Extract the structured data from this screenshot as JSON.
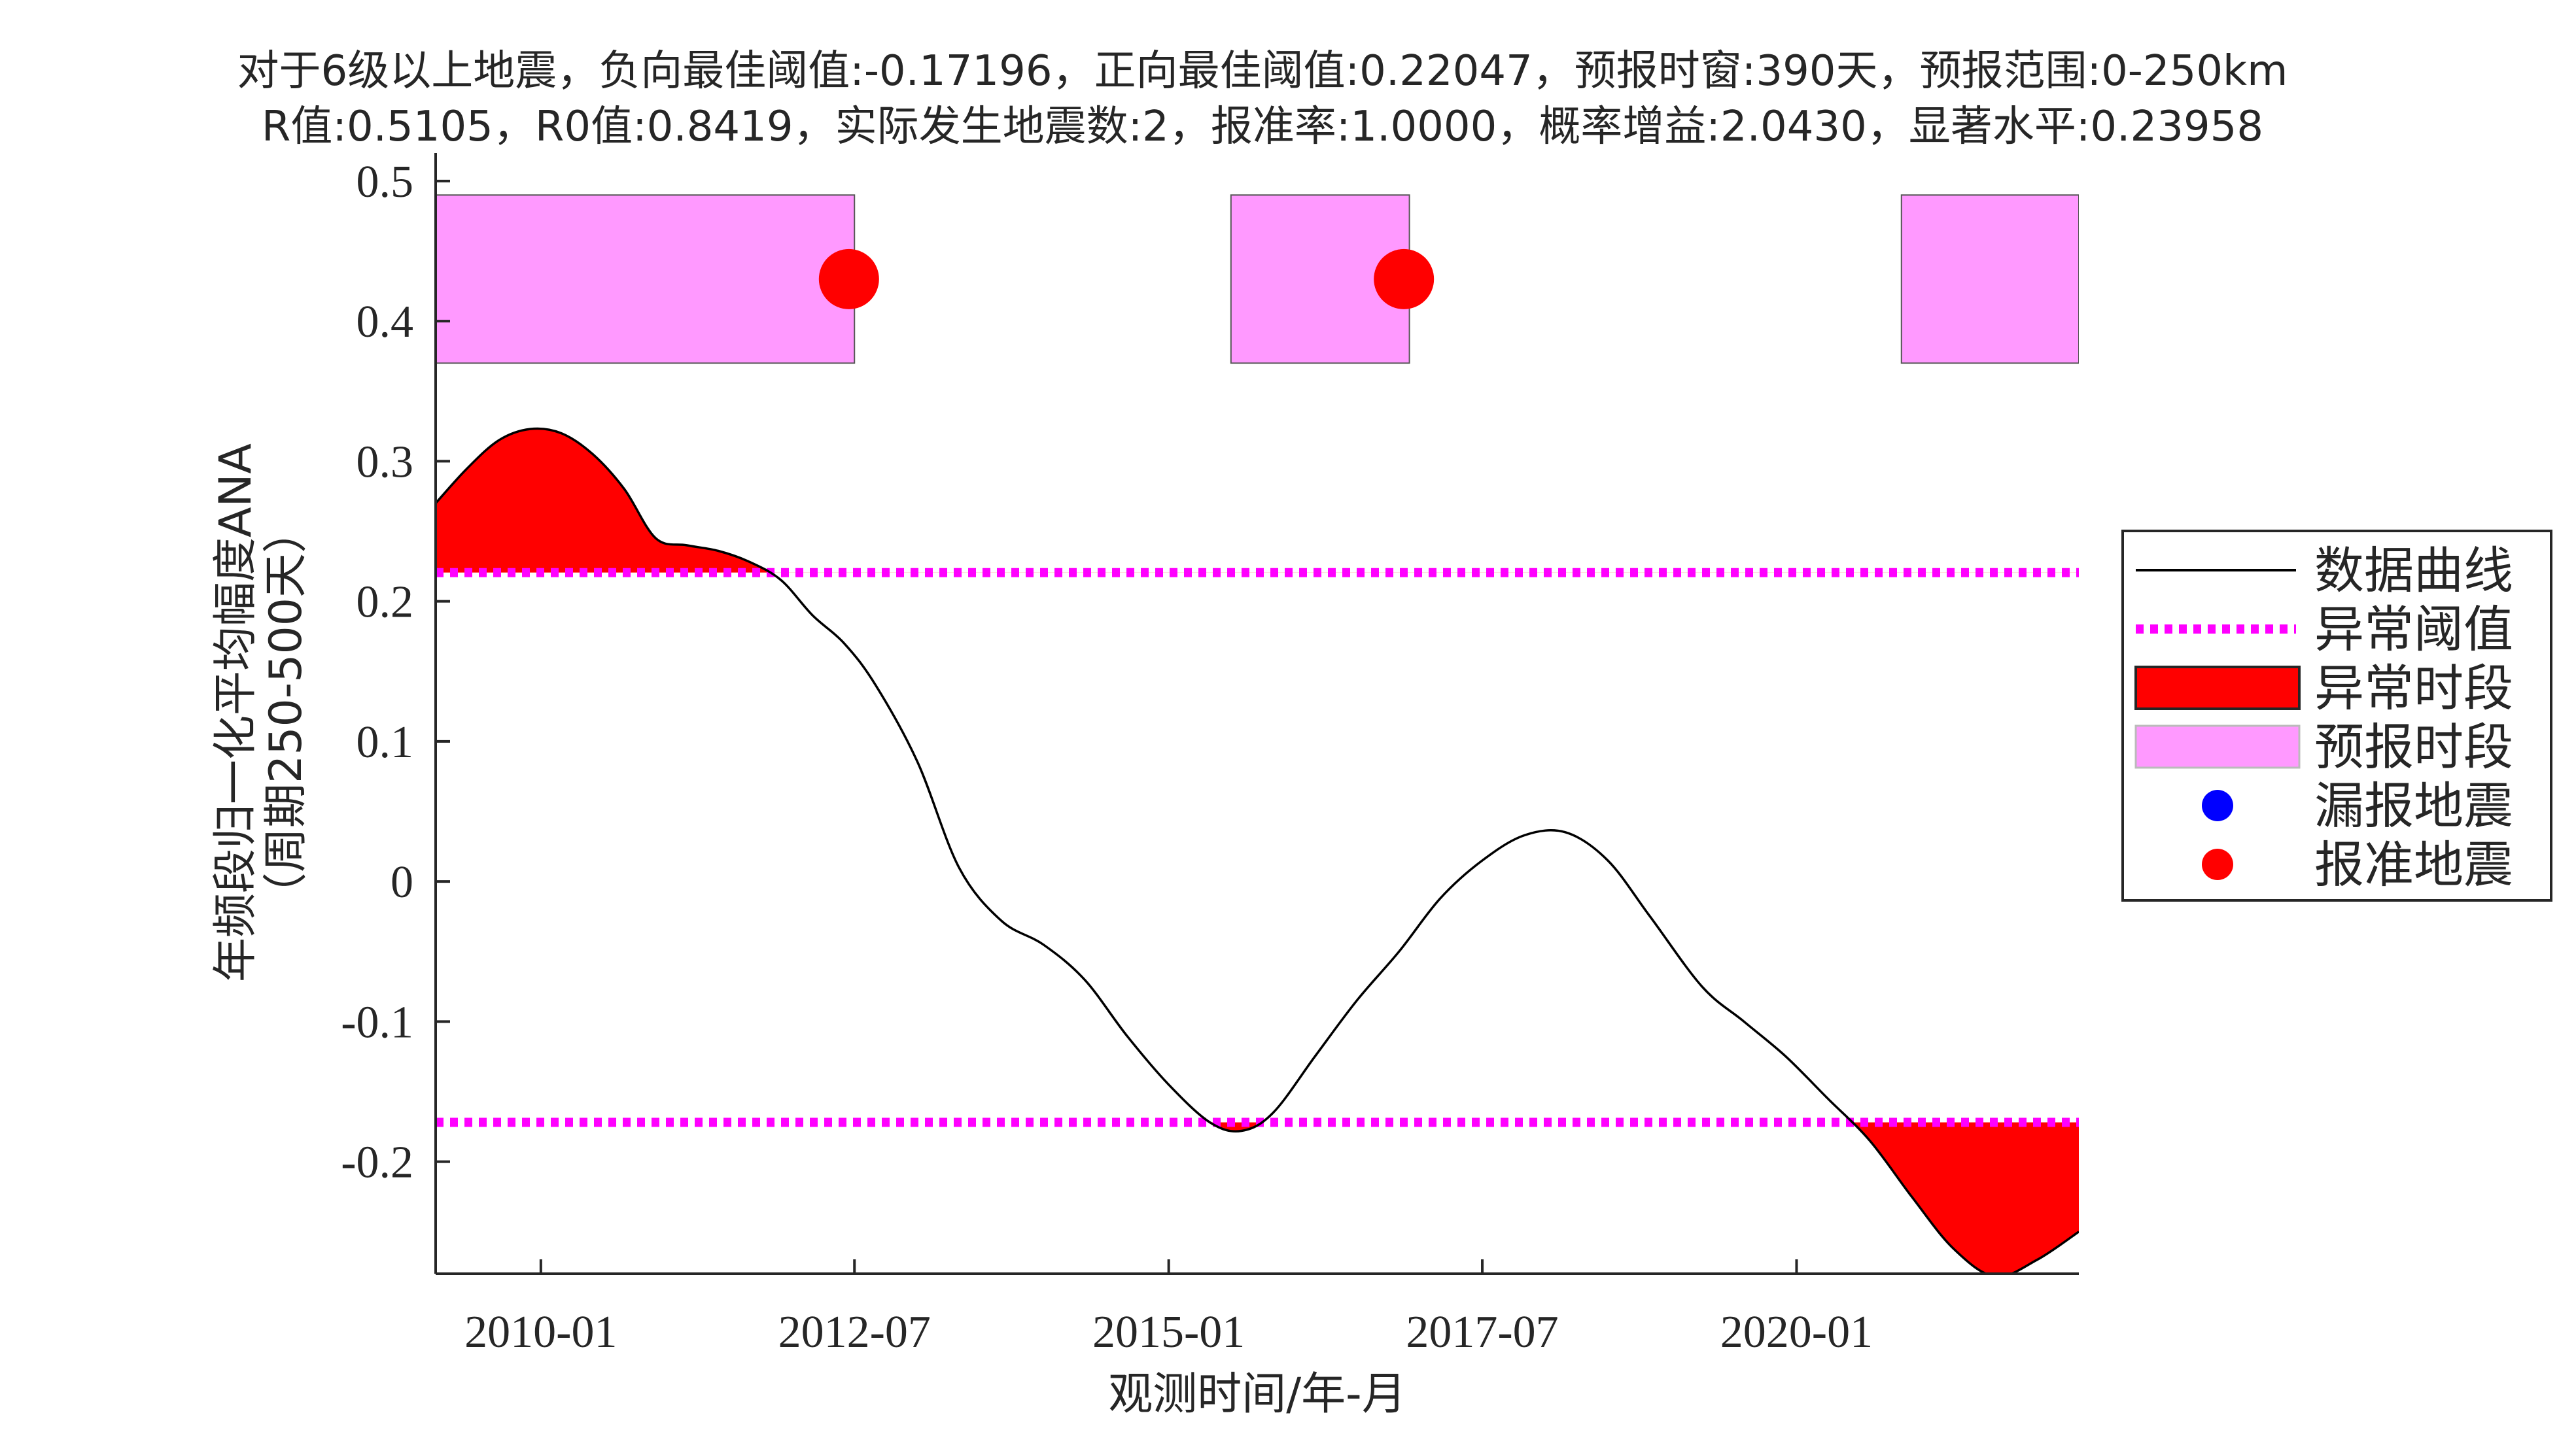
{
  "chart_data": {
    "type": "line",
    "title_lines": [
      "对于6级以上地震，负向最佳阈值:-0.17196，正向最佳阈值:0.22047，预报时窗:390天，预报范围:0-250km",
      "R值:0.5105，R0值:0.8419，实际发生地震数:2，报准率:1.0000，概率增益:2.0430，显著水平:0.23958"
    ],
    "xlabel": "观测时间/年-月",
    "ylabel_lines": [
      "年频段归一化平均幅度ANA",
      "（周期250-500天）"
    ],
    "xlim": [
      "2009-03-01",
      "2022-04-01"
    ],
    "ylim": [
      -0.28,
      0.52
    ],
    "x_ticks": [
      {
        "date": "2010-01-01",
        "label": "2010-01"
      },
      {
        "date": "2012-07-01",
        "label": "2012-07"
      },
      {
        "date": "2015-01-01",
        "label": "2015-01"
      },
      {
        "date": "2017-07-01",
        "label": "2017-07"
      },
      {
        "date": "2020-01-01",
        "label": "2020-01"
      }
    ],
    "y_ticks": [
      {
        "value": 0.5,
        "label": "0.5"
      },
      {
        "value": 0.4,
        "label": "0.4"
      },
      {
        "value": 0.3,
        "label": "0.3"
      },
      {
        "value": 0.2,
        "label": "0.2"
      },
      {
        "value": 0.1,
        "label": "0.1"
      },
      {
        "value": 0,
        "label": "0"
      },
      {
        "value": -0.1,
        "label": "-0.1"
      },
      {
        "value": -0.2,
        "label": "-0.2"
      }
    ],
    "thresholds": {
      "positive": 0.22047,
      "negative": -0.17196
    },
    "curve": [
      {
        "x": "2009-03-01",
        "y": 0.27
      },
      {
        "x": "2009-06-01",
        "y": 0.295
      },
      {
        "x": "2009-09-01",
        "y": 0.315
      },
      {
        "x": "2009-12-01",
        "y": 0.323
      },
      {
        "x": "2010-03-01",
        "y": 0.32
      },
      {
        "x": "2010-06-01",
        "y": 0.305
      },
      {
        "x": "2010-09-01",
        "y": 0.28
      },
      {
        "x": "2010-12-01",
        "y": 0.245
      },
      {
        "x": "2011-03-01",
        "y": 0.24
      },
      {
        "x": "2011-06-01",
        "y": 0.236
      },
      {
        "x": "2011-09-01",
        "y": 0.228
      },
      {
        "x": "2011-12-01",
        "y": 0.215
      },
      {
        "x": "2012-03-01",
        "y": 0.19
      },
      {
        "x": "2012-06-01",
        "y": 0.17
      },
      {
        "x": "2012-09-01",
        "y": 0.14
      },
      {
        "x": "2013-01-01",
        "y": 0.085
      },
      {
        "x": "2013-05-01",
        "y": 0.01
      },
      {
        "x": "2013-09-01",
        "y": -0.028
      },
      {
        "x": "2014-01-01",
        "y": -0.045
      },
      {
        "x": "2014-05-01",
        "y": -0.07
      },
      {
        "x": "2014-09-01",
        "y": -0.11
      },
      {
        "x": "2015-01-01",
        "y": -0.145
      },
      {
        "x": "2015-05-01",
        "y": -0.172
      },
      {
        "x": "2015-08-01",
        "y": -0.178
      },
      {
        "x": "2015-11-01",
        "y": -0.165
      },
      {
        "x": "2016-03-01",
        "y": -0.125
      },
      {
        "x": "2016-07-01",
        "y": -0.085
      },
      {
        "x": "2016-11-01",
        "y": -0.05
      },
      {
        "x": "2017-03-01",
        "y": -0.012
      },
      {
        "x": "2017-07-01",
        "y": 0.015
      },
      {
        "x": "2017-11-01",
        "y": 0.033
      },
      {
        "x": "2018-03-01",
        "y": 0.035
      },
      {
        "x": "2018-07-01",
        "y": 0.015
      },
      {
        "x": "2018-11-01",
        "y": -0.025
      },
      {
        "x": "2019-04-01",
        "y": -0.075
      },
      {
        "x": "2019-08-01",
        "y": -0.1
      },
      {
        "x": "2019-12-01",
        "y": -0.125
      },
      {
        "x": "2020-04-01",
        "y": -0.155
      },
      {
        "x": "2020-08-01",
        "y": -0.185
      },
      {
        "x": "2020-12-01",
        "y": -0.225
      },
      {
        "x": "2021-04-01",
        "y": -0.262
      },
      {
        "x": "2021-08-01",
        "y": -0.282
      },
      {
        "x": "2021-12-01",
        "y": -0.27
      },
      {
        "x": "2022-04-01",
        "y": -0.25
      }
    ],
    "forecast_periods": [
      {
        "start": "2009-03-01",
        "end": "2012-07-01",
        "y_range": [
          0.37,
          0.49
        ]
      },
      {
        "start": "2015-07-01",
        "end": "2016-12-01",
        "y_range": [
          0.37,
          0.49
        ]
      },
      {
        "start": "2020-11-01",
        "end": "2022-04-01",
        "y_range": [
          0.37,
          0.49
        ]
      }
    ],
    "earthquakes": [
      {
        "x": "2012-06-15",
        "y": 0.43,
        "status": "报准"
      },
      {
        "x": "2016-11-15",
        "y": 0.43,
        "status": "报准"
      }
    ],
    "colors": {
      "curve": "#000000",
      "threshold": "#ff00ff",
      "anomaly": "#ff0000",
      "forecast": "#ff99ff",
      "missed": "#0000ff",
      "hit": "#ff0000"
    },
    "legend": {
      "position": "right",
      "items": [
        {
          "label": "数据曲线",
          "kind": "line"
        },
        {
          "label": "异常阈值",
          "kind": "dotted"
        },
        {
          "label": "异常时段",
          "kind": "anomaly"
        },
        {
          "label": "预报时段",
          "kind": "forecast"
        },
        {
          "label": "漏报地震",
          "kind": "missed"
        },
        {
          "label": "报准地震",
          "kind": "hit"
        }
      ]
    }
  }
}
